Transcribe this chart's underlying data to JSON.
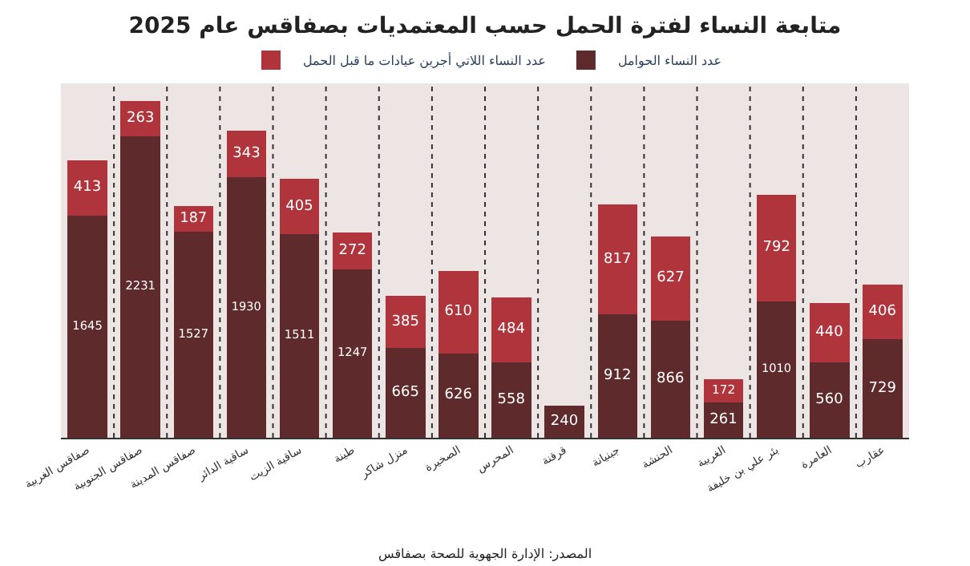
{
  "chart_data": {
    "type": "bar",
    "title": "متابعة النساء لفترة الحمل حسب المعتمديات بصفاقس عام 2025",
    "categories": [
      "صفاقس الغربية",
      "صفاقس الجنوبية",
      "صفاقس المدينة",
      "ساقية الدائر",
      "ساقية الزيت",
      "طينة",
      "منزل شاكر",
      "الصخيرة",
      "المحرس",
      "قرقنة",
      "جبنيانة",
      "الحنشة",
      "الغريبة",
      "بئر علي بن خليفة",
      "العامرة",
      "عقارب"
    ],
    "series": [
      {
        "name": "عدد النساء الحوامل",
        "color": "#5e2a2c",
        "values": [
          1645,
          2231,
          1527,
          1930,
          1511,
          1247,
          665,
          626,
          558,
          240,
          912,
          866,
          261,
          1010,
          560,
          729
        ]
      },
      {
        "name": "عدد النساء اللاتي أجرين عيادات ما قبل الحمل",
        "color": "#b0343c",
        "values": [
          413,
          263,
          187,
          343,
          405,
          272,
          385,
          610,
          484,
          null,
          817,
          627,
          172,
          792,
          440,
          406
        ]
      }
    ],
    "stacked": true,
    "data_labels": true,
    "grid": "x",
    "legend": "top",
    "annotations": [
      "المصدر: الإدارة الجهوية للصحة بصفاقس"
    ]
  }
}
